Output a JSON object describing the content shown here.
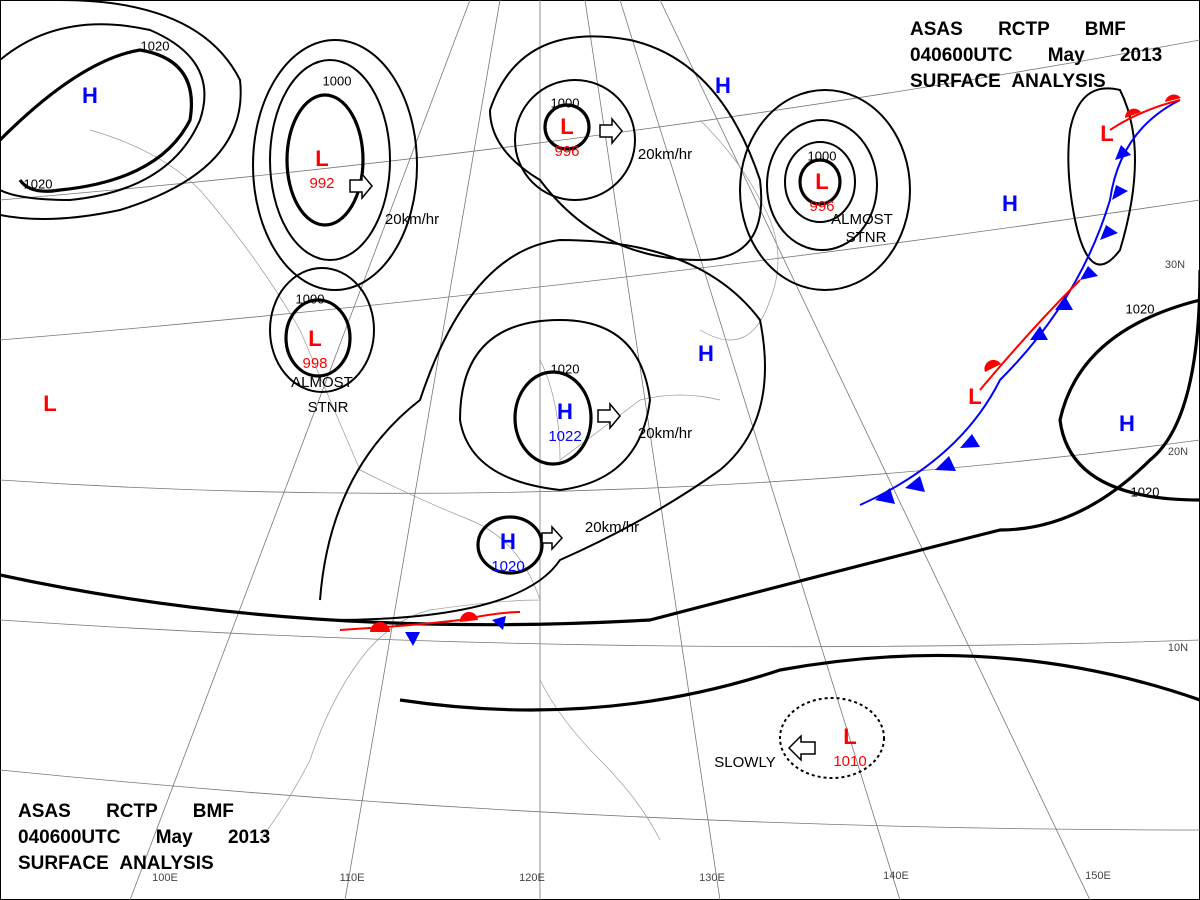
{
  "header": {
    "lines": [
      "ASAS RCTP BMF",
      "040600UTC May 2013",
      "SURFACE ANALYSIS"
    ]
  },
  "centers": [
    {
      "type": "L",
      "pressure": 992
    },
    {
      "type": "L",
      "pressure": 996
    },
    {
      "type": "L",
      "pressure": 996
    },
    {
      "type": "L",
      "pressure": 998
    },
    {
      "type": "H",
      "pressure": 1022
    },
    {
      "type": "H",
      "pressure": 1020
    },
    {
      "type": "L",
      "pressure": 1010
    },
    {
      "type": "H"
    },
    {
      "type": "H"
    },
    {
      "type": "H"
    },
    {
      "type": "H"
    },
    {
      "type": "H"
    },
    {
      "type": "L"
    },
    {
      "type": "L"
    },
    {
      "type": "L"
    }
  ],
  "isobar_labels": [
    1020,
    1020,
    1000,
    1000,
    1000,
    1000,
    1020,
    1020,
    1020
  ],
  "annotations": [
    "20km/hr",
    "20km/hr",
    "20km/hr",
    "20km/hr",
    "ALMOST",
    "STNR",
    "ALMOST",
    "STNR",
    "SLOWLY"
  ],
  "longitudes": [
    "100E",
    "110E",
    "120E",
    "130E",
    "140E",
    "150E"
  ],
  "latitudes": [
    "30N",
    "20N",
    "10N"
  ]
}
